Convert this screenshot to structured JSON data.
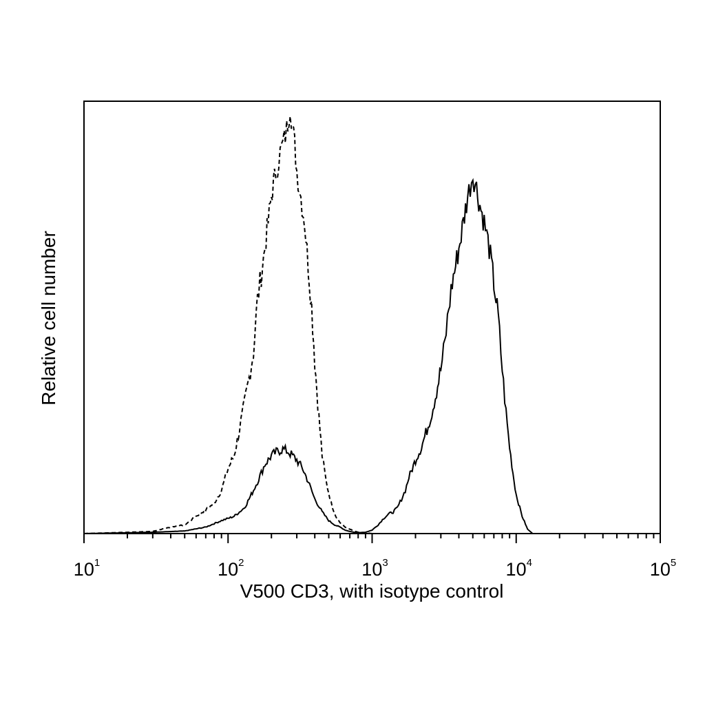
{
  "chart_data": {
    "type": "line",
    "subtype": "flow-cytometry-histogram",
    "title": "",
    "xlabel": "V500 CD3, with isotype control",
    "ylabel": "Relative cell number",
    "x_scale": "log",
    "xlim": [
      10,
      100000
    ],
    "ylim": [
      0,
      100
    ],
    "grid": false,
    "legend": "none",
    "x_ticks": [
      {
        "value": 10,
        "base": "10",
        "exp": "1"
      },
      {
        "value": 100,
        "base": "10",
        "exp": "2"
      },
      {
        "value": 1000,
        "base": "10",
        "exp": "3"
      },
      {
        "value": 10000,
        "base": "10",
        "exp": "4"
      },
      {
        "value": 100000,
        "base": "10",
        "exp": "5"
      }
    ],
    "series": [
      {
        "line_style": "dashed",
        "color": "#000000",
        "x": [
          10,
          20,
          30,
          40,
          50,
          60,
          70,
          80,
          90,
          100,
          110,
          120,
          130,
          140,
          150,
          160,
          170,
          180,
          190,
          200,
          210,
          220,
          230,
          240,
          250,
          260,
          270,
          280,
          290,
          300,
          320,
          340,
          360,
          380,
          400,
          420,
          450,
          480,
          520,
          560,
          600,
          650,
          700,
          750,
          800,
          900,
          1000,
          1200,
          1500,
          2000,
          5000,
          100000
        ],
        "y": [
          0,
          0.3,
          0.5,
          1.5,
          2,
          4,
          5.5,
          7,
          10,
          15,
          18,
          24,
          30,
          36,
          42,
          54,
          60,
          66,
          72,
          78,
          82,
          85,
          88,
          90,
          92,
          95,
          99,
          94,
          90,
          84,
          78,
          72,
          62,
          53,
          40,
          30,
          18,
          12,
          7,
          4,
          2.5,
          1.5,
          1,
          0.6,
          0.3,
          0.2,
          0,
          0,
          0,
          0,
          0,
          0
        ]
      },
      {
        "line_style": "solid",
        "color": "#000000",
        "x": [
          10,
          30,
          50,
          70,
          90,
          100,
          110,
          120,
          130,
          140,
          150,
          160,
          170,
          180,
          190,
          200,
          220,
          240,
          260,
          280,
          300,
          330,
          360,
          400,
          450,
          500,
          550,
          600,
          650,
          700,
          750,
          800,
          900,
          1000,
          1100,
          1200,
          1300,
          1400,
          1500,
          1600,
          1700,
          1800,
          1900,
          2000,
          2200,
          2400,
          2600,
          2800,
          3000,
          3200,
          3400,
          3600,
          3800,
          4000,
          4300,
          4600,
          5000,
          5300,
          5600,
          6000,
          6500,
          7000,
          7500,
          8000,
          8500,
          9000,
          9500,
          10000,
          11000,
          12000,
          13000,
          14000,
          20000,
          100000
        ],
        "y": [
          0,
          0.3,
          0.6,
          1.5,
          3,
          3.5,
          4,
          5,
          6,
          8,
          10,
          12,
          14,
          16,
          17,
          18,
          19,
          19.5,
          19,
          18,
          17,
          15,
          12,
          8,
          5,
          3,
          2,
          1.5,
          0.8,
          0.5,
          0.3,
          0.2,
          0.3,
          0.8,
          2,
          3.5,
          4.5,
          5,
          6,
          8,
          10,
          13,
          15,
          17,
          20,
          24,
          28,
          33,
          38,
          44,
          52,
          58,
          62,
          66,
          72,
          78,
          83,
          80,
          76,
          72,
          66,
          58,
          50,
          38,
          28,
          20,
          14,
          9,
          4,
          1,
          0,
          0,
          0,
          0
        ]
      }
    ]
  }
}
